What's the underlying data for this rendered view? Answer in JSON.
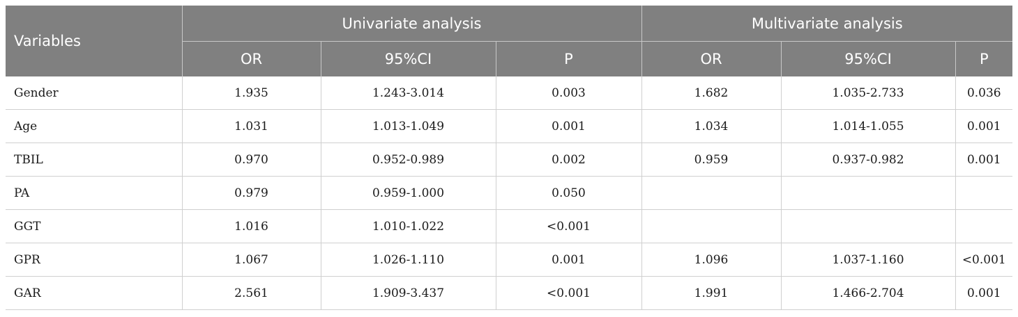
{
  "table": {
    "header": {
      "variables": "Variables",
      "univariate": "Univariate analysis",
      "multivariate": "Multivariate analysis",
      "subcols": [
        "OR",
        "95%CI",
        "P",
        "OR",
        "95%CI",
        "P"
      ]
    },
    "rows": [
      [
        "Gender",
        "1.935",
        "1.243-3.014",
        "0.003",
        "1.682",
        "1.035-2.733",
        "0.036"
      ],
      [
        "Age",
        "1.031",
        "1.013-1.049",
        "0.001",
        "1.034",
        "1.014-1.055",
        "0.001"
      ],
      [
        "TBIL",
        "0.970",
        "0.952-0.989",
        "0.002",
        "0.959",
        "0.937-0.982",
        "0.001"
      ],
      [
        "PA",
        "0.979",
        "0.959-1.000",
        "0.050",
        "",
        "",
        ""
      ],
      [
        "GGT",
        "1.016",
        "1.010-1.022",
        "<0.001",
        "",
        "",
        ""
      ],
      [
        "GPR",
        "1.067",
        "1.026-1.110",
        "0.001",
        "1.096",
        "1.037-1.160",
        "<0.001"
      ],
      [
        "GAR",
        "2.561",
        "1.909-3.437",
        "<0.001",
        "1.991",
        "1.466-2.704",
        "0.001"
      ]
    ]
  }
}
